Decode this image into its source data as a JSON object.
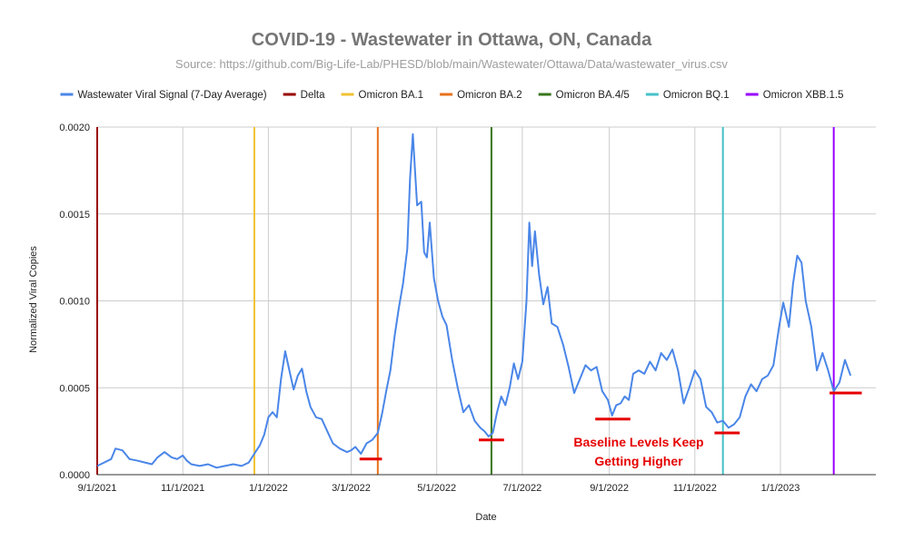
{
  "chart_data": {
    "type": "line",
    "title": "COVID-19 -  Wastewater in Ottawa, ON, Canada",
    "subtitle": "Source: https://github.com/Big-Life-Lab/PHESD/blob/main/Wastewater/Ottawa/Data/wastewater_virus.csv",
    "xlabel": "Date",
    "ylabel": "Normalized Viral Copies",
    "x_range": [
      "2021-09-01",
      "2023-03-10"
    ],
    "ylim": [
      0,
      0.002
    ],
    "y_ticks": [
      {
        "value": 0,
        "label": "0.0000"
      },
      {
        "value": 0.0005,
        "label": "0.0005"
      },
      {
        "value": 0.001,
        "label": "0.0010"
      },
      {
        "value": 0.0015,
        "label": "0.0015"
      },
      {
        "value": 0.002,
        "label": "0.0020"
      }
    ],
    "x_ticks": [
      {
        "date": "2021-09-01",
        "label": "9/1/2021"
      },
      {
        "date": "2021-11-01",
        "label": "11/1/2021"
      },
      {
        "date": "2022-01-01",
        "label": "1/1/2022"
      },
      {
        "date": "2022-03-01",
        "label": "3/1/2022"
      },
      {
        "date": "2022-05-01",
        "label": "5/1/2022"
      },
      {
        "date": "2022-07-01",
        "label": "7/1/2022"
      },
      {
        "date": "2022-09-01",
        "label": "9/1/2022"
      },
      {
        "date": "2022-11-01",
        "label": "11/1/2022"
      },
      {
        "date": "2023-01-01",
        "label": "1/1/2023"
      }
    ],
    "grid": true,
    "legend_position": "top",
    "series": [
      {
        "name": "Wastewater Viral Signal (7-Day Average)",
        "color": "#4a86e8",
        "points": [
          [
            "2021-09-01",
            5e-05
          ],
          [
            "2021-09-06",
            7e-05
          ],
          [
            "2021-09-11",
            9e-05
          ],
          [
            "2021-09-14",
            0.00015
          ],
          [
            "2021-09-19",
            0.00014
          ],
          [
            "2021-09-24",
            9e-05
          ],
          [
            "2021-09-30",
            8e-05
          ],
          [
            "2021-10-05",
            7e-05
          ],
          [
            "2021-10-10",
            6e-05
          ],
          [
            "2021-10-14",
            0.0001
          ],
          [
            "2021-10-19",
            0.00013
          ],
          [
            "2021-10-24",
            0.0001
          ],
          [
            "2021-10-28",
            9e-05
          ],
          [
            "2021-11-01",
            0.00011
          ],
          [
            "2021-11-04",
            8e-05
          ],
          [
            "2021-11-07",
            6e-05
          ],
          [
            "2021-11-13",
            5e-05
          ],
          [
            "2021-11-19",
            6e-05
          ],
          [
            "2021-11-25",
            4e-05
          ],
          [
            "2021-12-01",
            5e-05
          ],
          [
            "2021-12-07",
            6e-05
          ],
          [
            "2021-12-13",
            5e-05
          ],
          [
            "2021-12-18",
            7e-05
          ],
          [
            "2021-12-22",
            0.00012
          ],
          [
            "2021-12-26",
            0.00017
          ],
          [
            "2021-12-29",
            0.00023
          ],
          [
            "2022-01-01",
            0.00033
          ],
          [
            "2022-01-04",
            0.00036
          ],
          [
            "2022-01-07",
            0.00033
          ],
          [
            "2022-01-10",
            0.00055
          ],
          [
            "2022-01-13",
            0.00071
          ],
          [
            "2022-01-16",
            0.0006
          ],
          [
            "2022-01-19",
            0.00049
          ],
          [
            "2022-01-22",
            0.00057
          ],
          [
            "2022-01-25",
            0.00061
          ],
          [
            "2022-01-28",
            0.00048
          ],
          [
            "2022-01-31",
            0.00039
          ],
          [
            "2022-02-04",
            0.00033
          ],
          [
            "2022-02-08",
            0.00032
          ],
          [
            "2022-02-12",
            0.00025
          ],
          [
            "2022-02-16",
            0.00018
          ],
          [
            "2022-02-21",
            0.00015
          ],
          [
            "2022-02-26",
            0.00013
          ],
          [
            "2022-03-01",
            0.00014
          ],
          [
            "2022-03-04",
            0.00016
          ],
          [
            "2022-03-08",
            0.00012
          ],
          [
            "2022-03-12",
            0.00018
          ],
          [
            "2022-03-16",
            0.0002
          ],
          [
            "2022-03-20",
            0.00024
          ],
          [
            "2022-03-23",
            0.00035
          ],
          [
            "2022-03-26",
            0.00048
          ],
          [
            "2022-03-29",
            0.0006
          ],
          [
            "2022-04-01",
            0.0008
          ],
          [
            "2022-04-04",
            0.00096
          ],
          [
            "2022-04-07",
            0.0011
          ],
          [
            "2022-04-10",
            0.0013
          ],
          [
            "2022-04-12",
            0.0017
          ],
          [
            "2022-04-14",
            0.00196
          ],
          [
            "2022-04-17",
            0.00155
          ],
          [
            "2022-04-20",
            0.00157
          ],
          [
            "2022-04-22",
            0.00128
          ],
          [
            "2022-04-24",
            0.00125
          ],
          [
            "2022-04-26",
            0.00145
          ],
          [
            "2022-04-29",
            0.00113
          ],
          [
            "2022-05-02",
            0.001
          ],
          [
            "2022-05-05",
            0.00091
          ],
          [
            "2022-05-08",
            0.00086
          ],
          [
            "2022-05-12",
            0.00066
          ],
          [
            "2022-05-16",
            0.0005
          ],
          [
            "2022-05-20",
            0.00036
          ],
          [
            "2022-05-24",
            0.0004
          ],
          [
            "2022-05-28",
            0.00031
          ],
          [
            "2022-06-01",
            0.00027
          ],
          [
            "2022-06-04",
            0.00025
          ],
          [
            "2022-06-07",
            0.00022
          ],
          [
            "2022-06-10",
            0.00024
          ],
          [
            "2022-06-13",
            0.00036
          ],
          [
            "2022-06-16",
            0.00045
          ],
          [
            "2022-06-19",
            0.0004
          ],
          [
            "2022-06-22",
            0.0005
          ],
          [
            "2022-06-25",
            0.00064
          ],
          [
            "2022-06-28",
            0.00055
          ],
          [
            "2022-07-01",
            0.00065
          ],
          [
            "2022-07-04",
            0.001
          ],
          [
            "2022-07-06",
            0.00145
          ],
          [
            "2022-07-08",
            0.0012
          ],
          [
            "2022-07-10",
            0.0014
          ],
          [
            "2022-07-13",
            0.00115
          ],
          [
            "2022-07-16",
            0.00098
          ],
          [
            "2022-07-19",
            0.00108
          ],
          [
            "2022-07-22",
            0.00087
          ],
          [
            "2022-07-26",
            0.00085
          ],
          [
            "2022-07-30",
            0.00075
          ],
          [
            "2022-08-03",
            0.00062
          ],
          [
            "2022-08-07",
            0.00047
          ],
          [
            "2022-08-11",
            0.00055
          ],
          [
            "2022-08-15",
            0.00063
          ],
          [
            "2022-08-19",
            0.0006
          ],
          [
            "2022-08-23",
            0.00062
          ],
          [
            "2022-08-27",
            0.00048
          ],
          [
            "2022-08-31",
            0.00043
          ],
          [
            "2022-09-03",
            0.00034
          ],
          [
            "2022-09-06",
            0.0004
          ],
          [
            "2022-09-09",
            0.00041
          ],
          [
            "2022-09-12",
            0.00045
          ],
          [
            "2022-09-15",
            0.00043
          ],
          [
            "2022-09-18",
            0.00058
          ],
          [
            "2022-09-22",
            0.0006
          ],
          [
            "2022-09-26",
            0.00058
          ],
          [
            "2022-09-30",
            0.00065
          ],
          [
            "2022-10-04",
            0.0006
          ],
          [
            "2022-10-08",
            0.0007
          ],
          [
            "2022-10-12",
            0.00066
          ],
          [
            "2022-10-16",
            0.00072
          ],
          [
            "2022-10-20",
            0.0006
          ],
          [
            "2022-10-24",
            0.00041
          ],
          [
            "2022-10-28",
            0.0005
          ],
          [
            "2022-11-01",
            0.0006
          ],
          [
            "2022-11-05",
            0.00055
          ],
          [
            "2022-11-09",
            0.00039
          ],
          [
            "2022-11-13",
            0.00036
          ],
          [
            "2022-11-17",
            0.0003
          ],
          [
            "2022-11-21",
            0.00031
          ],
          [
            "2022-11-25",
            0.00027
          ],
          [
            "2022-11-29",
            0.00029
          ],
          [
            "2022-12-03",
            0.00033
          ],
          [
            "2022-12-07",
            0.00045
          ],
          [
            "2022-12-11",
            0.00052
          ],
          [
            "2022-12-15",
            0.00048
          ],
          [
            "2022-12-19",
            0.00055
          ],
          [
            "2022-12-23",
            0.00057
          ],
          [
            "2022-12-27",
            0.00063
          ],
          [
            "2022-12-31",
            0.00085
          ],
          [
            "2023-01-03",
            0.00099
          ],
          [
            "2023-01-07",
            0.00085
          ],
          [
            "2023-01-10",
            0.0011
          ],
          [
            "2023-01-13",
            0.00126
          ],
          [
            "2023-01-16",
            0.00122
          ],
          [
            "2023-01-19",
            0.001
          ],
          [
            "2023-01-23",
            0.00085
          ],
          [
            "2023-01-27",
            0.0006
          ],
          [
            "2023-01-31",
            0.0007
          ],
          [
            "2023-02-04",
            0.0006
          ],
          [
            "2023-02-08",
            0.00048
          ],
          [
            "2023-02-12",
            0.00053
          ],
          [
            "2023-02-16",
            0.00066
          ],
          [
            "2023-02-20",
            0.00057
          ]
        ]
      }
    ],
    "variant_lines": [
      {
        "name": "Delta",
        "date": "2021-09-01",
        "color": "#990000"
      },
      {
        "name": "Omicron BA.1",
        "date": "2021-12-22",
        "color": "#f1c232"
      },
      {
        "name": "Omicron BA.2",
        "date": "2022-03-20",
        "color": "#e8711a"
      },
      {
        "name": "Omicron BA.4/5",
        "date": "2022-06-09",
        "color": "#38761d"
      },
      {
        "name": "Omicron BQ.1",
        "date": "2022-11-21",
        "color": "#45c0c8"
      },
      {
        "name": "Omicron XBB.1.5",
        "date": "2023-02-08",
        "color": "#9900ff"
      }
    ],
    "baseline_markers": [
      {
        "start": "2022-03-07",
        "end": "2022-03-23",
        "value": 9e-05
      },
      {
        "start": "2022-05-31",
        "end": "2022-06-18",
        "value": 0.0002
      },
      {
        "start": "2022-08-22",
        "end": "2022-09-16",
        "value": 0.00032
      },
      {
        "start": "2022-11-15",
        "end": "2022-12-03",
        "value": 0.00024
      },
      {
        "start": "2023-02-05",
        "end": "2023-02-28",
        "value": 0.00047
      }
    ],
    "baseline_color": "#e60000",
    "annotation": [
      "Baseline Levels Keep",
      "Getting Higher"
    ]
  }
}
